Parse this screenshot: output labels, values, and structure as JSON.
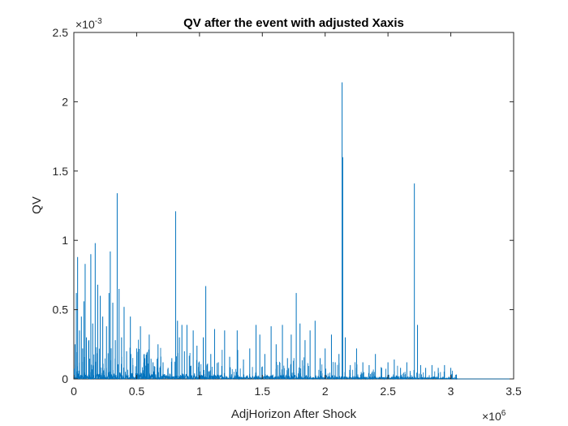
{
  "chart_data": {
    "type": "line",
    "title": "QV after the event with adjusted Xaxis",
    "xlabel": "AdjHorizon After Shock",
    "ylabel": "QV",
    "x_multiplier": "×10",
    "x_multiplier_exp": "6",
    "y_multiplier": "×10",
    "y_multiplier_exp": "-3",
    "xlim": [
      0,
      3.5
    ],
    "ylim": [
      0,
      2.5
    ],
    "x_ticks": [
      0,
      0.5,
      1,
      1.5,
      2,
      2.5,
      3,
      3.5
    ],
    "x_tick_labels": [
      "0",
      "0.5",
      "1",
      "1.5",
      "2",
      "2.5",
      "3",
      "3.5"
    ],
    "y_ticks": [
      0,
      0.5,
      1,
      1.5,
      2,
      2.5
    ],
    "y_tick_labels": [
      "0",
      "0.5",
      "1",
      "1.5",
      "2",
      "2.5"
    ],
    "grid": false,
    "line_color": "#0072BD",
    "data_end_x": 3.05,
    "spikes": [
      {
        "x": 0.01,
        "y": 0.25
      },
      {
        "x": 0.02,
        "y": 0.62
      },
      {
        "x": 0.03,
        "y": 0.88
      },
      {
        "x": 0.045,
        "y": 0.35
      },
      {
        "x": 0.06,
        "y": 0.45
      },
      {
        "x": 0.07,
        "y": 0.22
      },
      {
        "x": 0.08,
        "y": 0.56
      },
      {
        "x": 0.09,
        "y": 0.83
      },
      {
        "x": 0.1,
        "y": 0.3
      },
      {
        "x": 0.12,
        "y": 0.28
      },
      {
        "x": 0.135,
        "y": 0.9
      },
      {
        "x": 0.15,
        "y": 0.4
      },
      {
        "x": 0.17,
        "y": 0.98
      },
      {
        "x": 0.19,
        "y": 0.68
      },
      {
        "x": 0.21,
        "y": 0.6
      },
      {
        "x": 0.23,
        "y": 0.45
      },
      {
        "x": 0.26,
        "y": 0.38
      },
      {
        "x": 0.28,
        "y": 0.62
      },
      {
        "x": 0.29,
        "y": 0.92
      },
      {
        "x": 0.31,
        "y": 0.55
      },
      {
        "x": 0.33,
        "y": 0.28
      },
      {
        "x": 0.345,
        "y": 1.34
      },
      {
        "x": 0.36,
        "y": 0.65
      },
      {
        "x": 0.38,
        "y": 0.3
      },
      {
        "x": 0.4,
        "y": 0.52
      },
      {
        "x": 0.42,
        "y": 0.2
      },
      {
        "x": 0.45,
        "y": 0.45
      },
      {
        "x": 0.47,
        "y": 0.1
      },
      {
        "x": 0.5,
        "y": 0.22
      },
      {
        "x": 0.53,
        "y": 0.38
      },
      {
        "x": 0.56,
        "y": 0.18
      },
      {
        "x": 0.6,
        "y": 0.32
      },
      {
        "x": 0.63,
        "y": 0.12
      },
      {
        "x": 0.67,
        "y": 0.25
      },
      {
        "x": 0.71,
        "y": 0.12
      },
      {
        "x": 0.75,
        "y": 0.08
      },
      {
        "x": 0.78,
        "y": 0.15
      },
      {
        "x": 0.81,
        "y": 1.21
      },
      {
        "x": 0.825,
        "y": 0.42
      },
      {
        "x": 0.84,
        "y": 0.3
      },
      {
        "x": 0.86,
        "y": 0.39
      },
      {
        "x": 0.88,
        "y": 0.2
      },
      {
        "x": 0.9,
        "y": 0.39
      },
      {
        "x": 0.95,
        "y": 0.35
      },
      {
        "x": 0.98,
        "y": 0.24
      },
      {
        "x": 1.03,
        "y": 0.3
      },
      {
        "x": 1.05,
        "y": 0.67
      },
      {
        "x": 1.09,
        "y": 0.18
      },
      {
        "x": 1.12,
        "y": 0.36
      },
      {
        "x": 1.15,
        "y": 0.12
      },
      {
        "x": 1.2,
        "y": 0.35
      },
      {
        "x": 1.24,
        "y": 0.16
      },
      {
        "x": 1.3,
        "y": 0.35
      },
      {
        "x": 1.35,
        "y": 0.14
      },
      {
        "x": 1.4,
        "y": 0.22
      },
      {
        "x": 1.45,
        "y": 0.39
      },
      {
        "x": 1.48,
        "y": 0.32
      },
      {
        "x": 1.52,
        "y": 0.18
      },
      {
        "x": 1.57,
        "y": 0.38
      },
      {
        "x": 1.61,
        "y": 0.25
      },
      {
        "x": 1.66,
        "y": 0.39
      },
      {
        "x": 1.7,
        "y": 0.15
      },
      {
        "x": 1.73,
        "y": 0.32
      },
      {
        "x": 1.77,
        "y": 0.62
      },
      {
        "x": 1.8,
        "y": 0.4
      },
      {
        "x": 1.84,
        "y": 0.28
      },
      {
        "x": 1.88,
        "y": 0.35
      },
      {
        "x": 1.92,
        "y": 0.42
      },
      {
        "x": 1.96,
        "y": 0.15
      },
      {
        "x": 2.0,
        "y": 0.22
      },
      {
        "x": 2.05,
        "y": 0.32
      },
      {
        "x": 2.08,
        "y": 0.12
      },
      {
        "x": 2.11,
        "y": 0.18
      },
      {
        "x": 2.135,
        "y": 2.14
      },
      {
        "x": 2.14,
        "y": 1.6
      },
      {
        "x": 2.16,
        "y": 0.3
      },
      {
        "x": 2.2,
        "y": 0.1
      },
      {
        "x": 2.25,
        "y": 0.22
      },
      {
        "x": 2.3,
        "y": 0.12
      },
      {
        "x": 2.35,
        "y": 0.1
      },
      {
        "x": 2.4,
        "y": 0.18
      },
      {
        "x": 2.45,
        "y": 0.08
      },
      {
        "x": 2.5,
        "y": 0.12
      },
      {
        "x": 2.55,
        "y": 0.14
      },
      {
        "x": 2.6,
        "y": 0.08
      },
      {
        "x": 2.65,
        "y": 0.12
      },
      {
        "x": 2.71,
        "y": 1.41
      },
      {
        "x": 2.735,
        "y": 0.39
      },
      {
        "x": 2.76,
        "y": 0.1
      },
      {
        "x": 2.8,
        "y": 0.08
      },
      {
        "x": 2.85,
        "y": 0.1
      },
      {
        "x": 2.9,
        "y": 0.08
      },
      {
        "x": 2.95,
        "y": 0.1
      },
      {
        "x": 3.0,
        "y": 0.08
      },
      {
        "x": 3.04,
        "y": 0.03
      }
    ]
  }
}
